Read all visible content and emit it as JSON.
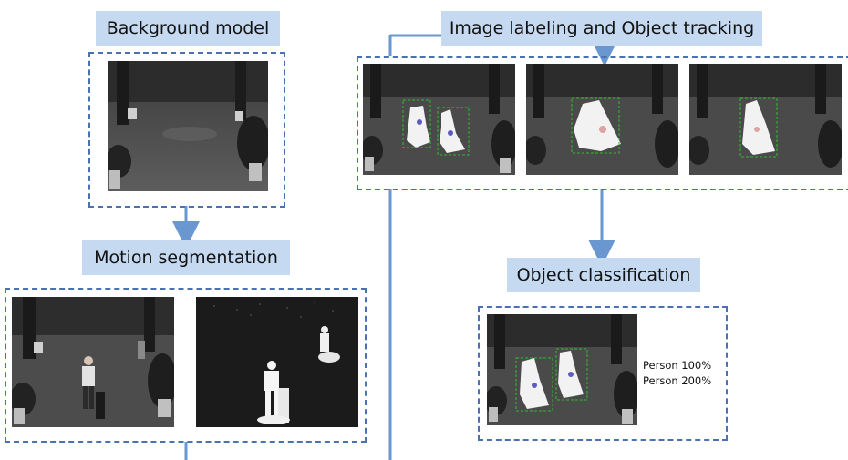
{
  "stages": {
    "background_model": "Background model",
    "motion_segmentation": "Motion segmentation",
    "image_labeling": "Image labeling and Object tracking",
    "object_classification": "Object classification"
  },
  "classification": {
    "results": [
      "Person 100%",
      "Person 200%"
    ]
  },
  "colors": {
    "label_fill": "#c5d9f1",
    "frame_stroke": "#4a72b0",
    "connector": "#6a97cf",
    "tracking_box": "#2fbf2f"
  }
}
